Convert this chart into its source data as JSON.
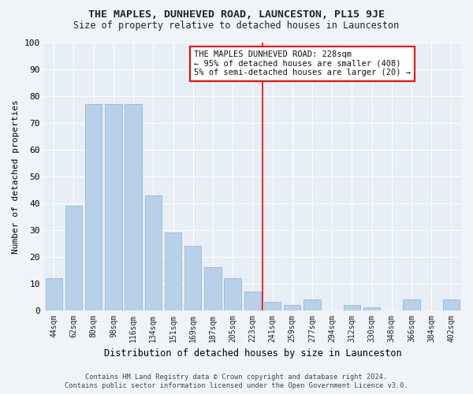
{
  "title": "THE MAPLES, DUNHEVED ROAD, LAUNCESTON, PL15 9JE",
  "subtitle": "Size of property relative to detached houses in Launceston",
  "xlabel": "Distribution of detached houses by size in Launceston",
  "ylabel": "Number of detached properties",
  "categories": [
    "44sqm",
    "62sqm",
    "80sqm",
    "98sqm",
    "116sqm",
    "134sqm",
    "151sqm",
    "169sqm",
    "187sqm",
    "205sqm",
    "223sqm",
    "241sqm",
    "259sqm",
    "277sqm",
    "294sqm",
    "312sqm",
    "330sqm",
    "348sqm",
    "366sqm",
    "384sqm",
    "402sqm"
  ],
  "values": [
    12,
    39,
    77,
    77,
    77,
    43,
    29,
    24,
    16,
    12,
    7,
    3,
    2,
    4,
    0,
    2,
    1,
    0,
    4,
    0,
    4
  ],
  "bar_color": "#b8d0e8",
  "bar_edge_color": "#9ab8d8",
  "annotation_title": "THE MAPLES DUNHEVED ROAD: 228sqm",
  "annotation_line1": "← 95% of detached houses are smaller (408)",
  "annotation_line2": "5% of semi-detached houses are larger (20) →",
  "ylim": [
    0,
    100
  ],
  "yticks": [
    0,
    10,
    20,
    30,
    40,
    50,
    60,
    70,
    80,
    90,
    100
  ],
  "bg_color": "#f0f4f8",
  "plot_bg_color": "#e8eef5",
  "grid_color": "#ffffff",
  "title_color": "#222222",
  "footer_line1": "Contains HM Land Registry data © Crown copyright and database right 2024.",
  "footer_line2": "Contains public sector information licensed under the Open Government Licence v3.0.",
  "red_line_index": 10.5
}
